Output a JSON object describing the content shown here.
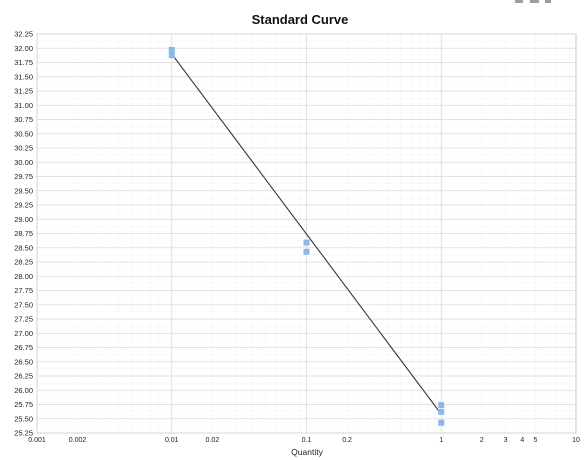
{
  "window_controls": [
    "minimize-icon",
    "maximize-icon",
    "close-icon"
  ],
  "chart_data": {
    "type": "scatter",
    "title": "Standard Curve",
    "xlabel": "Quantity",
    "ylabel": "",
    "xscale": "log",
    "xlim": [
      0.001,
      10
    ],
    "ylim": [
      25.25,
      32.25
    ],
    "x_ticks": [
      {
        "v": 0.001,
        "label": "0.001"
      },
      {
        "v": 0.002,
        "label": "0.002"
      },
      {
        "v": 0.01,
        "label": "0.01"
      },
      {
        "v": 0.02,
        "label": "0.02"
      },
      {
        "v": 0.1,
        "label": "0.1"
      },
      {
        "v": 0.2,
        "label": "0.2"
      },
      {
        "v": 1,
        "label": "1"
      },
      {
        "v": 2,
        "label": "2"
      },
      {
        "v": 3,
        "label": "3"
      },
      {
        "v": 4,
        "label": "4"
      },
      {
        "v": 5,
        "label": "5"
      },
      {
        "v": 10,
        "label": "10"
      }
    ],
    "y_ticks": [
      "25.25",
      "25.50",
      "25.75",
      "26.00",
      "26.25",
      "26.50",
      "26.75",
      "27.00",
      "27.25",
      "27.50",
      "27.75",
      "28.00",
      "28.25",
      "28.50",
      "28.75",
      "29.00",
      "29.25",
      "29.50",
      "29.75",
      "30.00",
      "30.25",
      "30.50",
      "30.75",
      "31.00",
      "31.25",
      "31.50",
      "31.75",
      "32.00",
      "32.25"
    ],
    "grid": true,
    "marker_color": "#8ab8ee",
    "line_color": "#333333",
    "points": [
      {
        "x": 0.01,
        "y": 31.97
      },
      {
        "x": 0.01,
        "y": 31.88
      },
      {
        "x": 0.1,
        "y": 28.59
      },
      {
        "x": 0.1,
        "y": 28.43
      },
      {
        "x": 1,
        "y": 25.74
      },
      {
        "x": 1,
        "y": 25.62
      },
      {
        "x": 1,
        "y": 25.43
      }
    ],
    "fit_line": {
      "x": [
        0.01,
        1
      ],
      "y": [
        31.9,
        25.58
      ]
    }
  }
}
